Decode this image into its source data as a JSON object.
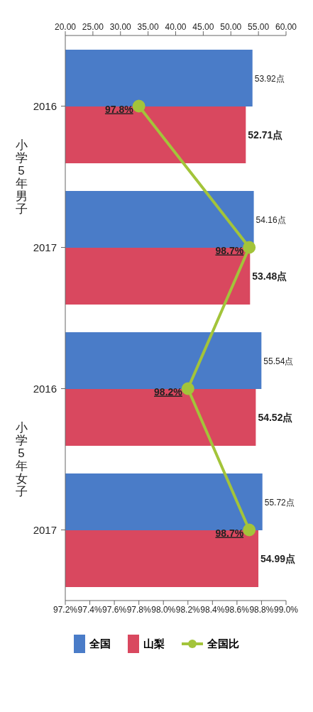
{
  "chart_data": {
    "type": "bar",
    "orientation": "horizontal",
    "categories": [
      "2016",
      "2017",
      "2016",
      "2017"
    ],
    "annotations": [
      "小学5年男子",
      "小学5年女子"
    ],
    "series": [
      {
        "name": "全国",
        "color": "#4a7cc8",
        "values": [
          53.92,
          54.16,
          55.54,
          55.72
        ],
        "value_labels": [
          "53.92点",
          "54.16点",
          "55.54点",
          "55.72点"
        ]
      },
      {
        "name": "山梨",
        "color": "#d9485f",
        "values": [
          52.71,
          53.48,
          54.52,
          54.99
        ],
        "value_labels": [
          "52.71点",
          "53.48点",
          "54.52点",
          "54.99点"
        ]
      },
      {
        "name": "全国比",
        "type": "line",
        "axis": "x2",
        "color": "#a3c43a",
        "marker": "circle",
        "values": [
          97.8,
          98.7,
          98.2,
          98.7
        ],
        "value_labels": [
          "97.8%",
          "98.7%",
          "98.2%",
          "98.7%"
        ]
      }
    ],
    "xlim": [
      20,
      60
    ],
    "xticks": [
      {
        "value": 20,
        "label": "20.00"
      },
      {
        "value": 25,
        "label": "25.00"
      },
      {
        "value": 30,
        "label": "30.00"
      },
      {
        "value": 35,
        "label": "35.00"
      },
      {
        "value": 40,
        "label": "40.00"
      },
      {
        "value": 45,
        "label": "45.00"
      },
      {
        "value": 50,
        "label": "50.00"
      },
      {
        "value": 55,
        "label": "55.00"
      },
      {
        "value": 60,
        "label": "60.00"
      }
    ],
    "x2lim": [
      97.2,
      99.0
    ],
    "x2ticks": [
      {
        "value": 97.2,
        "label": "97.2%"
      },
      {
        "value": 97.4,
        "label": "97.4%"
      },
      {
        "value": 97.6,
        "label": "97.6%"
      },
      {
        "value": 97.8,
        "label": "97.8%"
      },
      {
        "value": 98.0,
        "label": "98.0%"
      },
      {
        "value": 98.2,
        "label": "98.2%"
      },
      {
        "value": 98.4,
        "label": "98.4%"
      },
      {
        "value": 98.6,
        "label": "98.6%"
      },
      {
        "value": 98.8,
        "label": "98.8%"
      },
      {
        "value": 99.0,
        "label": "99.0%"
      }
    ],
    "grid": false,
    "legend": "bottom"
  }
}
